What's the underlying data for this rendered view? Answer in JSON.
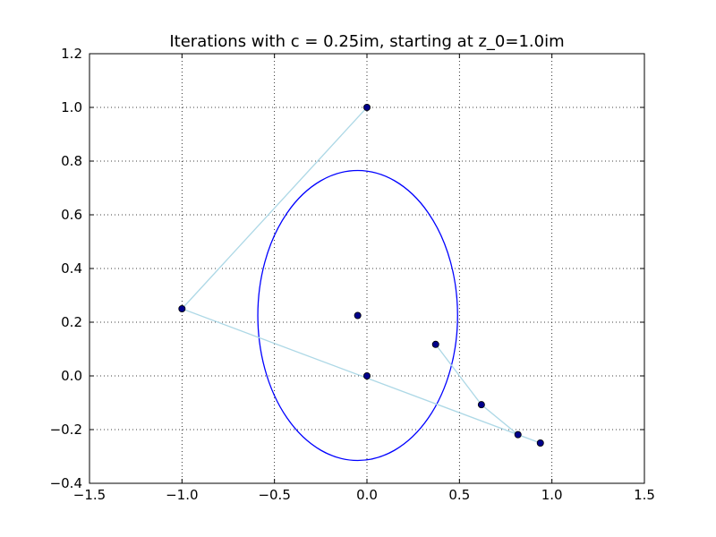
{
  "chart_data": {
    "type": "scatter",
    "title": "Iterations with c = 0.25im, starting at z_0=1.0im",
    "xlabel": "",
    "ylabel": "",
    "xlim": [
      -1.5,
      1.5
    ],
    "ylim": [
      -0.4,
      1.2
    ],
    "xticks": [
      -1.5,
      -1.0,
      -0.5,
      0.0,
      0.5,
      1.0,
      1.5
    ],
    "xtick_labels": [
      "−1.5",
      "−1.0",
      "−0.5",
      "0.0",
      "0.5",
      "1.0",
      "1.5"
    ],
    "yticks": [
      -0.4,
      -0.2,
      0.0,
      0.2,
      0.4,
      0.6,
      0.8,
      1.0,
      1.2
    ],
    "ytick_labels": [
      "−0.4",
      "−0.2",
      "0.0",
      "0.2",
      "0.4",
      "0.6",
      "0.8",
      "1.0",
      "1.2"
    ],
    "grid": true,
    "grid_style": "dotted",
    "iteration_path": {
      "color": "#add8e6",
      "points": [
        {
          "x": 0.0,
          "y": 1.0
        },
        {
          "x": -1.0,
          "y": 0.25
        },
        {
          "x": 0.9375,
          "y": -0.25
        },
        {
          "x": 0.8164,
          "y": -0.2188
        },
        {
          "x": 0.6187,
          "y": -0.1072
        },
        {
          "x": 0.3713,
          "y": 0.1174
        }
      ]
    },
    "marker_color": "#00008b",
    "extra_points": [
      {
        "x": 0.0,
        "y": 0.0
      },
      {
        "x": -0.05,
        "y": 0.225
      }
    ],
    "ellipse": {
      "color": "#0000ff",
      "center": {
        "x": -0.05,
        "y": 0.225
      },
      "rx": 0.54,
      "ry": 0.54
    }
  }
}
